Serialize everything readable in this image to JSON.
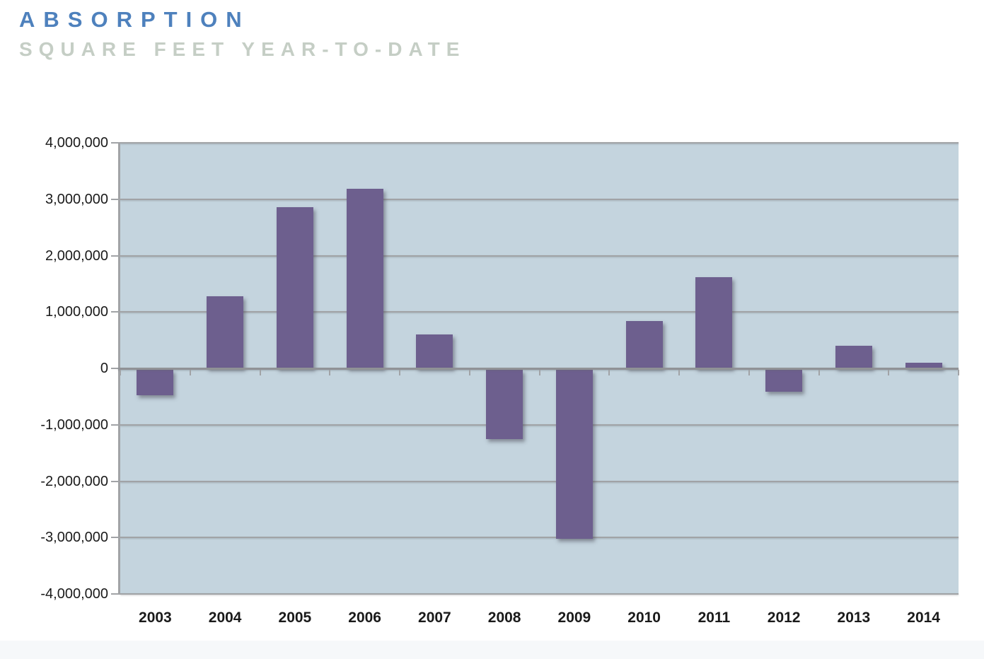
{
  "chart_data": {
    "type": "bar",
    "title": "ABSORPTION",
    "subtitle": "SQUARE FEET YEAR-TO-DATE",
    "categories": [
      "2003",
      "2004",
      "2005",
      "2006",
      "2007",
      "2008",
      "2009",
      "2010",
      "2011",
      "2012",
      "2013",
      "2014"
    ],
    "values": [
      -460000,
      1280000,
      2860000,
      3180000,
      600000,
      -1230000,
      -3000000,
      840000,
      1620000,
      -390000,
      400000,
      100000
    ],
    "xlabel": "",
    "ylabel": "",
    "ylim": [
      -4000000,
      4000000
    ],
    "y_tick_step": 1000000,
    "y_tick_labels": [
      "4,000,000",
      "3,000,000",
      "2,000,000",
      "1,000,000",
      "0",
      "-1,000,000",
      "-2,000,000",
      "-3,000,000",
      "-4,000,000"
    ],
    "grid": true,
    "legend": false,
    "single_series": true
  },
  "colors": {
    "title": "#4E81BD",
    "subtitle": "#C5CEC5",
    "bar": "#6D5F8E",
    "plot_background": "#C4D4DE",
    "gridline": "#A1A3A6",
    "zero_line": "#909296",
    "axis_text": "#1A1A1A"
  }
}
